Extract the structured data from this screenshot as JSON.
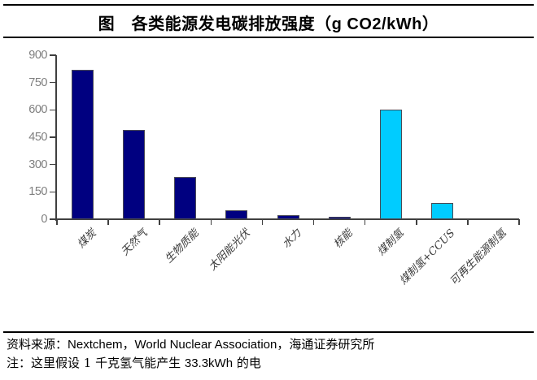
{
  "title": "图　各类能源发电碳排放强度（g CO2/kWh）",
  "chart_data": {
    "type": "bar",
    "title": "图　各类能源发电碳排放强度（g CO2/kWh）",
    "unit": "g CO2/kWh",
    "categories": [
      "煤炭",
      "天然气",
      "生物质能",
      "太阳能光伏",
      "水力",
      "核能",
      "煤制氢",
      "煤制氢+CCUS",
      "可再生能源制氢"
    ],
    "values": [
      820,
      490,
      230,
      48,
      24,
      12,
      600,
      90,
      0
    ],
    "bar_colors": [
      "#000080",
      "#000080",
      "#000080",
      "#000080",
      "#000080",
      "#000080",
      "#00CCFF",
      "#00CCFF",
      "#00CCFF"
    ],
    "ylim": [
      0,
      900
    ],
    "yticks": [
      0,
      150,
      300,
      450,
      600,
      750,
      900
    ],
    "xlabel": "",
    "ylabel": "",
    "grid": false,
    "legend": "none",
    "x_label_rotation_deg": 45
  },
  "footer": {
    "source_prefix": "资料来源：",
    "source_latin": "Nextchem，World Nuclear Association，",
    "source_suffix": "海通证券研究所",
    "note_prefix": "注：这里假设 1 千克氢气能产生 ",
    "note_value": "33.3kWh",
    "note_suffix": " 的电"
  },
  "colors": {
    "bar_primary": "#000080",
    "bar_highlight": "#00CCFF",
    "axis": "#3f3f3f",
    "y_tick_label": "#7f7f7f",
    "text": "#000000"
  }
}
